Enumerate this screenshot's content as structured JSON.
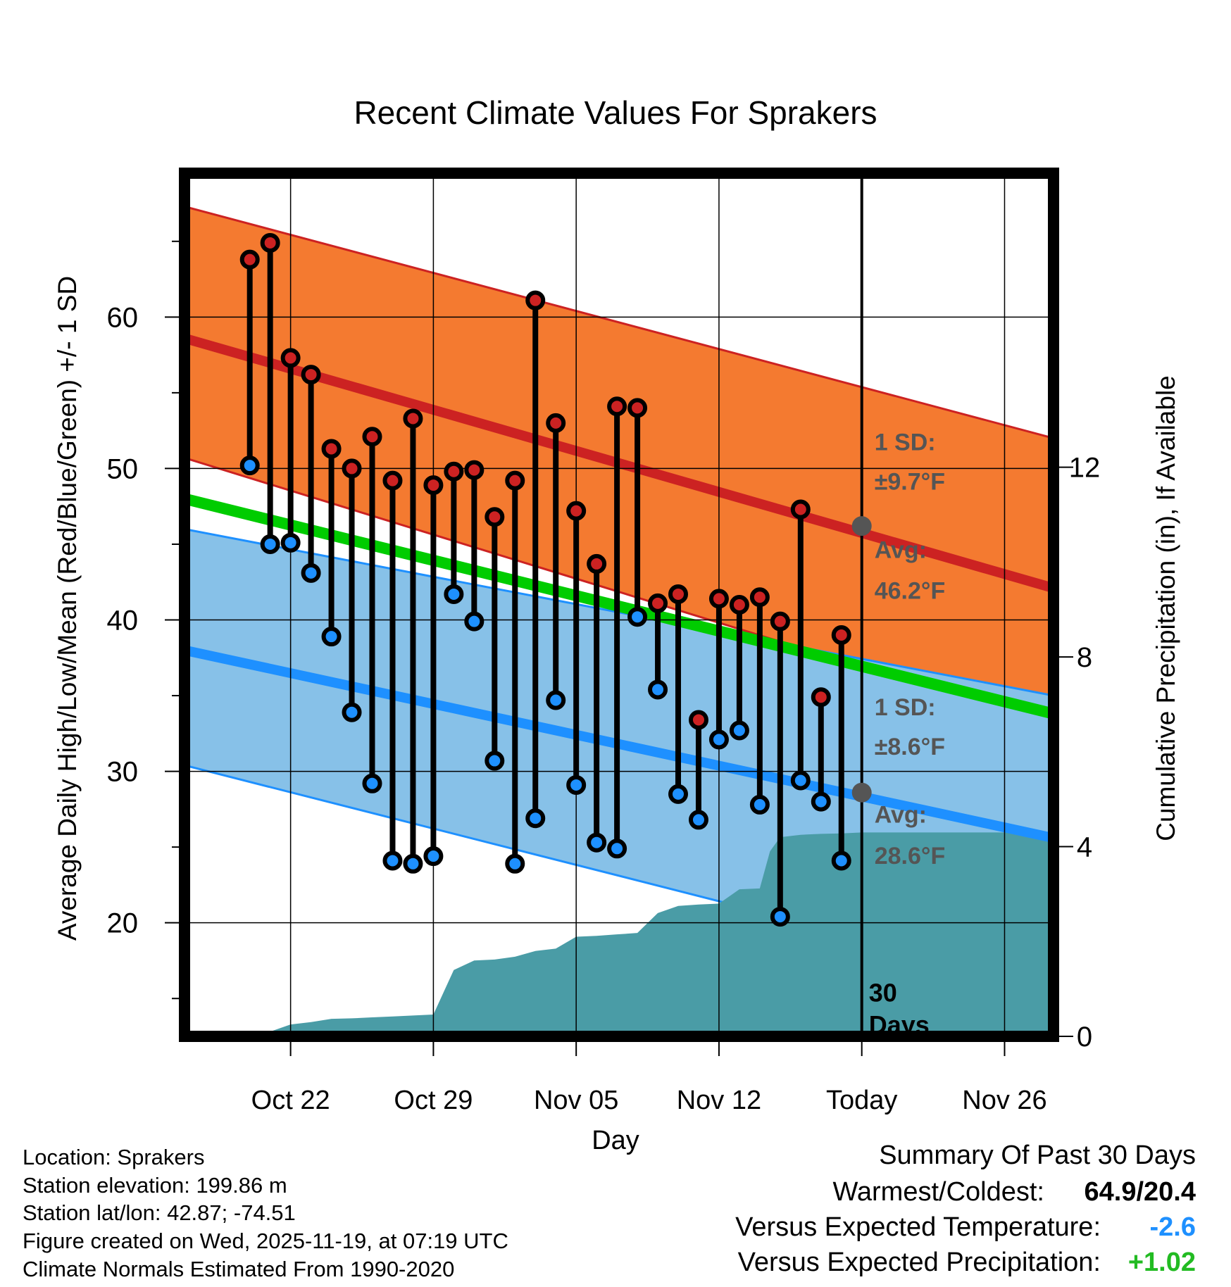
{
  "chart_data": {
    "type": "line",
    "title": "Recent Climate Values For Sprakers",
    "xlabel": "Day",
    "ylabel": "Average Daily High/Low/Mean (Red/Blue/Green) +/- 1 SD",
    "y2label": "Cumulative Precipitation (in), If Available",
    "ylim": [
      12.5,
      69.5
    ],
    "y2lim": [
      0,
      18.2
    ],
    "x_range_days": [
      -33.2,
      9.4
    ],
    "x_ticks": [
      {
        "day": -28,
        "label": "Oct 22"
      },
      {
        "day": -21,
        "label": "Oct 29"
      },
      {
        "day": -14,
        "label": "Nov 05"
      },
      {
        "day": -7,
        "label": "Nov 12"
      },
      {
        "day": 0,
        "label": "Today"
      },
      {
        "day": 7,
        "label": "Nov 26"
      }
    ],
    "y_ticks": [
      20,
      30,
      40,
      50,
      60
    ],
    "y2_ticks": [
      0,
      4,
      8,
      12
    ],
    "grid": true,
    "normals": {
      "high_avg_line": {
        "start": 58.6,
        "end": 42.1
      },
      "high_upper": {
        "start": 67.3,
        "end": 52.0
      },
      "high_lower": {
        "start": 50.7,
        "end": 33.0
      },
      "low_avg_line": {
        "start": 38.0,
        "end": 25.6
      },
      "low_upper": {
        "start": 46.0,
        "end": 35.0
      },
      "low_lower": {
        "start": 30.4,
        "end": 20.5,
        "lower_end_day": -4.3
      },
      "mean_line": {
        "start": 48.0,
        "end": 33.8
      }
    },
    "high_band_sd_label": "1 SD:",
    "high_band_sd_value": "±9.7°F",
    "high_avg_label": "Avg:",
    "high_avg_value": "46.2°F",
    "high_avg_marker": 46.2,
    "low_band_sd_label": "1 SD:",
    "low_band_sd_value": "±8.6°F",
    "low_avg_label": "Avg:",
    "low_avg_value": "28.6°F",
    "low_avg_marker": 28.6,
    "window_label_line1": "30",
    "window_label_line2": "Days",
    "days": [
      -30,
      -29,
      -28,
      -27,
      -26,
      -25,
      -24,
      -23,
      -22,
      -21,
      -20,
      -19,
      -18,
      -17,
      -16,
      -15,
      -14,
      -13,
      -12,
      -11,
      -10,
      -9,
      -8,
      -7,
      -6,
      -5,
      -4,
      -3,
      -2,
      -1
    ],
    "highs": [
      63.8,
      64.9,
      57.3,
      56.2,
      51.3,
      50.0,
      52.1,
      49.2,
      53.3,
      48.9,
      49.8,
      49.9,
      46.8,
      49.2,
      61.1,
      53.0,
      47.2,
      43.7,
      54.1,
      54.0,
      41.1,
      41.7,
      33.4,
      41.4,
      41.0,
      41.5,
      39.9,
      47.3,
      34.9,
      39.0
    ],
    "lows": [
      50.2,
      45.0,
      45.1,
      43.1,
      38.9,
      33.9,
      29.2,
      24.1,
      23.9,
      24.4,
      41.7,
      39.9,
      30.7,
      23.9,
      26.9,
      34.7,
      29.1,
      25.3,
      24.9,
      40.2,
      35.4,
      28.5,
      26.8,
      32.1,
      32.7,
      27.8,
      20.4,
      29.4,
      28.0,
      24.1
    ],
    "precip_cumulative": {
      "days": [
        -31,
        -30,
        -29,
        -28,
        -27,
        -26,
        -25,
        -24,
        -23,
        -22,
        -21,
        -20,
        -19,
        -18,
        -17,
        -16,
        -15,
        -14,
        -13,
        -12,
        -11,
        -10,
        -9,
        -8,
        -7,
        -6,
        -5,
        -4.5,
        -4,
        -3,
        -2,
        -1,
        0,
        9.4
      ],
      "values": [
        0.0,
        0.1,
        0.1,
        0.25,
        0.3,
        0.37,
        0.38,
        0.4,
        0.42,
        0.44,
        0.46,
        1.4,
        1.6,
        1.62,
        1.68,
        1.8,
        1.85,
        2.1,
        2.12,
        2.15,
        2.18,
        2.6,
        2.75,
        2.78,
        2.8,
        3.1,
        3.12,
        3.9,
        4.2,
        4.25,
        4.27,
        4.28,
        4.3,
        4.3
      ]
    },
    "colors": {
      "high_band": "#f47a30",
      "low_band": "#87c1e8",
      "high_line": "#cc2222",
      "low_line": "#1e90ff",
      "mean_line": "#00cc00",
      "precip": "#4a9ca6",
      "high_dot": "#cc2222",
      "low_dot": "#1e90ff",
      "marker": "#555555"
    }
  },
  "info": {
    "location": "Location: Sprakers",
    "elevation": "Station elevation: 199.86 m",
    "latlon": "Station lat/lon: 42.87; -74.51",
    "created": "Figure created on Wed, 2025-11-19, at 07:19 UTC",
    "normals": "Climate Normals Estimated From 1990-2020"
  },
  "summary": {
    "title": "Summary Of Past 30 Days",
    "warm_cold_label": "Warmest/Coldest:",
    "warm_cold_value": "64.9/20.4",
    "temp_label": "Versus Expected Temperature:",
    "temp_value": "-2.6",
    "temp_color": "#1e90ff",
    "precip_label": "Versus Expected Precipitation:",
    "precip_value": "+1.02",
    "precip_color": "#22bb22"
  }
}
